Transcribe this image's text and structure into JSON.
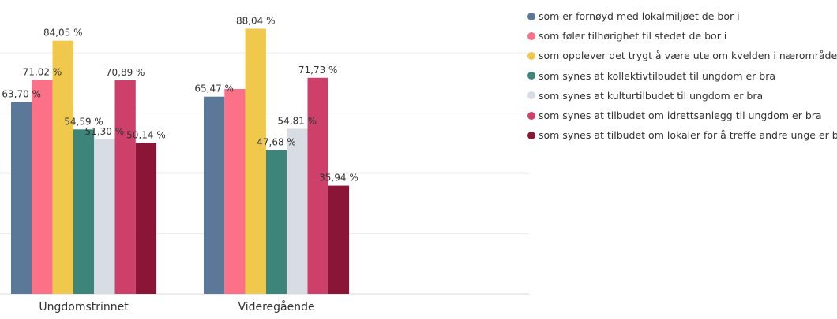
{
  "chart_data": {
    "type": "bar",
    "categories": [
      "Ungdomstrinnet",
      "Videregående"
    ],
    "ylim": [
      0,
      100
    ],
    "yticks": [
      0,
      20,
      40,
      60,
      80
    ],
    "grid": true,
    "legend_position": "right",
    "series": [
      {
        "name": "som er fornøyd med lokalmiljøet de bor i",
        "color": "#5a7999",
        "values": [
          63.7,
          65.47
        ],
        "labels": [
          "63,70 %",
          "65,47 %"
        ]
      },
      {
        "name": "som føler tilhørighet til stedet de bor i",
        "color": "#fc7088",
        "values": [
          71.02,
          68.0
        ],
        "labels": [
          "71,02 %",
          null
        ]
      },
      {
        "name": "som opplever det trygt å være ute om kvelden i nærområdet sitt",
        "color": "#f0c84b",
        "values": [
          84.05,
          88.04
        ],
        "labels": [
          "84,05 %",
          "88,04 %"
        ]
      },
      {
        "name": "som synes at kollektivtilbudet til ungdom er bra",
        "color": "#3d857a",
        "values": [
          54.59,
          47.68
        ],
        "labels": [
          "54,59 %",
          "47,68 %"
        ]
      },
      {
        "name": "som synes at kulturtilbudet til ungdom er bra",
        "color": "#d8dde4",
        "values": [
          51.3,
          54.81
        ],
        "labels": [
          "51,30 %",
          "54,81 %"
        ]
      },
      {
        "name": "som synes at tilbudet om idrettsanlegg til ungdom er bra",
        "color": "#cc406a",
        "values": [
          70.89,
          71.73
        ],
        "labels": [
          "70,89 %",
          "71,73 %"
        ]
      },
      {
        "name": "som synes at tilbudet om lokaler for å treffe andre unge er bra",
        "color": "#8a1537",
        "values": [
          50.14,
          35.94
        ],
        "labels": [
          "50,14 %",
          "35,94 %"
        ]
      }
    ]
  }
}
